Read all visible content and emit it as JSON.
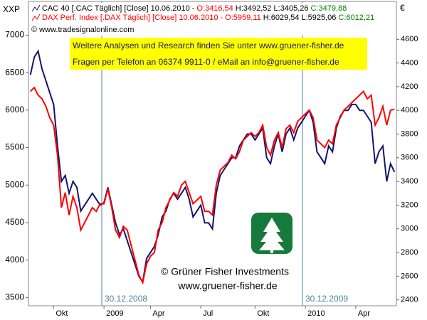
{
  "chart_data": {
    "type": "line",
    "source": "© www.tradesignalonline.com",
    "ylabel": "XXP",
    "y2label": "€",
    "info_lines": [
      "Weitere Analysen und Research finden Sie unter www.gruener-fisher.de",
      "Fragen per Telefon an 06374 9911-0 / eMail an info@gruener-fisher.de"
    ],
    "watermark": [
      "© Grüner Fisher Investments",
      "www.gruener-fisher.de"
    ],
    "annotations": [
      "30.12.2008",
      "30.12.2009"
    ],
    "categories": [
      null,
      null,
      null,
      null,
      null,
      null,
      "Okt",
      null,
      null,
      null,
      null,
      null,
      null,
      null,
      null,
      null,
      null,
      null,
      null,
      "2009",
      null,
      null,
      null,
      null,
      null,
      null,
      null,
      null,
      null,
      null,
      null,
      "Apr",
      null,
      null,
      null,
      null,
      null,
      null,
      null,
      null,
      null,
      null,
      null,
      null,
      "Jul",
      null,
      null,
      null,
      null,
      null,
      null,
      null,
      null,
      null,
      null,
      null,
      null,
      null,
      "Okt",
      null,
      null,
      null,
      null,
      null,
      null,
      null,
      null,
      null,
      null,
      null,
      null,
      "2010",
      null,
      null,
      null,
      null,
      null,
      null,
      null,
      null,
      null,
      null,
      null,
      null,
      "Apr",
      null,
      null,
      null,
      null,
      null,
      null,
      null,
      null,
      null,
      null
    ],
    "ylim": [
      3390,
      7450
    ],
    "yticks": [
      3500,
      4000,
      4500,
      5000,
      5500,
      6000,
      6500,
      7000
    ],
    "y2lim": [
      2350,
      4920
    ],
    "y2ticks": [
      2400,
      2600,
      2800,
      3000,
      3200,
      3400,
      3600,
      3800,
      4000,
      4200,
      4400,
      4600
    ],
    "series": [
      {
        "name": "CAC 40 [.CAC  Täglich] [Close] 10.06.2010 -",
        "ohlc": [
          "O:3416,54",
          "H:3492,52",
          "L:3405,26",
          "C:3479,88"
        ],
        "color": "#14146e",
        "axis": "y2",
        "values": [
          4300,
          4450,
          4500,
          4350,
          4250,
          4150,
          4050,
          3700,
          3400,
          3450,
          3300,
          3400,
          3350,
          3150,
          3200,
          3250,
          3300,
          3250,
          3200,
          3220,
          3350,
          3200,
          3050,
          2950,
          3000,
          2900,
          2800,
          2700,
          2600,
          2550,
          2750,
          2800,
          2850,
          2950,
          3100,
          3150,
          3250,
          3300,
          3250,
          3300,
          3350,
          3250,
          3100,
          3150,
          3200,
          3050,
          3050,
          3000,
          3300,
          3450,
          3500,
          3550,
          3600,
          3600,
          3700,
          3750,
          3800,
          3800,
          3750,
          3800,
          3850,
          3600,
          3550,
          3700,
          3800,
          3650,
          3800,
          3850,
          3750,
          3850,
          3900,
          3950,
          4000,
          3900,
          3650,
          3600,
          3550,
          3700,
          3650,
          3850,
          3950,
          4000,
          4000,
          4050,
          4050,
          4000,
          4000,
          3950,
          3900,
          3550,
          3650,
          3700,
          3400,
          3550,
          3480
        ]
      },
      {
        "name": "DAX Perf. Index [.DAX  Täglich] [Close] 10.06.2010 -",
        "ohlc": [
          "O:5959,11",
          "H:6029,54",
          "L:5925,06",
          "C:6012,21"
        ],
        "color": "#ff0000",
        "values": [
          6250,
          6300,
          6200,
          6150,
          6050,
          5900,
          5800,
          5400,
          4700,
          4900,
          4600,
          4850,
          4700,
          4400,
          4500,
          4600,
          4700,
          4650,
          4750,
          4750,
          4950,
          4700,
          4400,
          4300,
          4450,
          4400,
          4200,
          4000,
          3800,
          3700,
          3950,
          4050,
          4100,
          4400,
          4500,
          4700,
          4800,
          4900,
          4850,
          5000,
          5050,
          4900,
          4750,
          4800,
          4850,
          4650,
          4650,
          4600,
          5000,
          5200,
          5250,
          5300,
          5400,
          5350,
          5450,
          5600,
          5650,
          5700,
          5650,
          5700,
          5800,
          5500,
          5400,
          5600,
          5700,
          5500,
          5750,
          5800,
          5700,
          5850,
          5900,
          5950,
          6000,
          5900,
          5600,
          5550,
          5500,
          5600,
          5550,
          5800,
          5900,
          6000,
          6050,
          6100,
          6150,
          6200,
          6250,
          6150,
          6200,
          5800,
          5900,
          6050,
          5800,
          6000,
          6012
        ]
      }
    ]
  }
}
